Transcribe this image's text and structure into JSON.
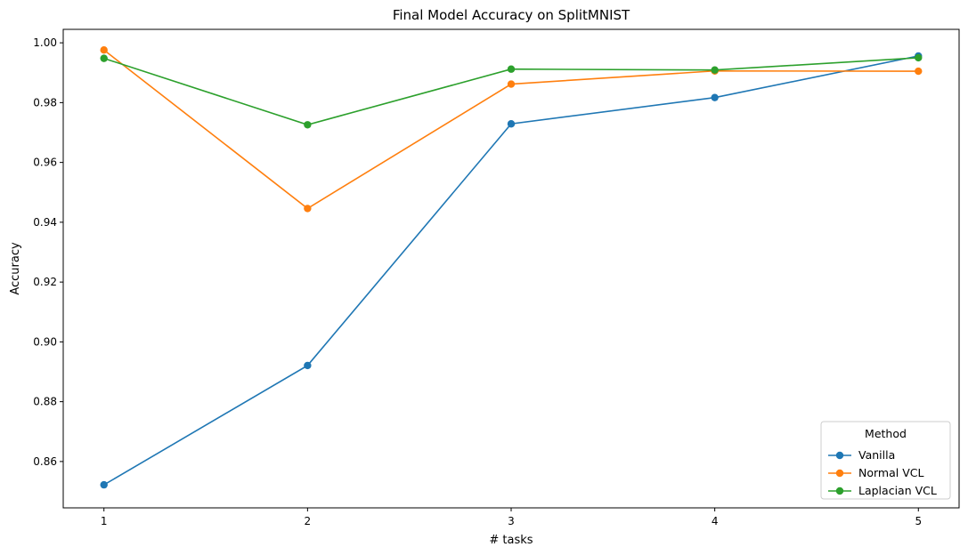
{
  "chart_data": {
    "type": "line",
    "title": "Final Model Accuracy on SplitMNIST",
    "xlabel": "# tasks",
    "ylabel": "Accuracy",
    "x": [
      1,
      2,
      3,
      4,
      5
    ],
    "xticks": [
      "1",
      "2",
      "3",
      "4",
      "5"
    ],
    "yticks": [
      "0.86",
      "0.88",
      "0.90",
      "0.92",
      "0.94",
      "0.96",
      "0.98",
      "1.00"
    ],
    "ylim": [
      0.8445,
      1.0045
    ],
    "xlim": [
      0.8,
      5.2
    ],
    "grid": false,
    "legend": {
      "title": "Method",
      "position": "bottom-right"
    },
    "series": [
      {
        "name": "Vanilla",
        "color": "#1f77b4",
        "values": [
          0.8522,
          0.8921,
          0.9729,
          0.9817,
          0.9956
        ]
      },
      {
        "name": "Normal VCL",
        "color": "#ff7f0e",
        "values": [
          0.9976,
          0.9446,
          0.9862,
          0.9906,
          0.9905
        ]
      },
      {
        "name": "Laplacian VCL",
        "color": "#2ca02c",
        "values": [
          0.9948,
          0.9726,
          0.9912,
          0.9909,
          0.995
        ]
      }
    ]
  }
}
